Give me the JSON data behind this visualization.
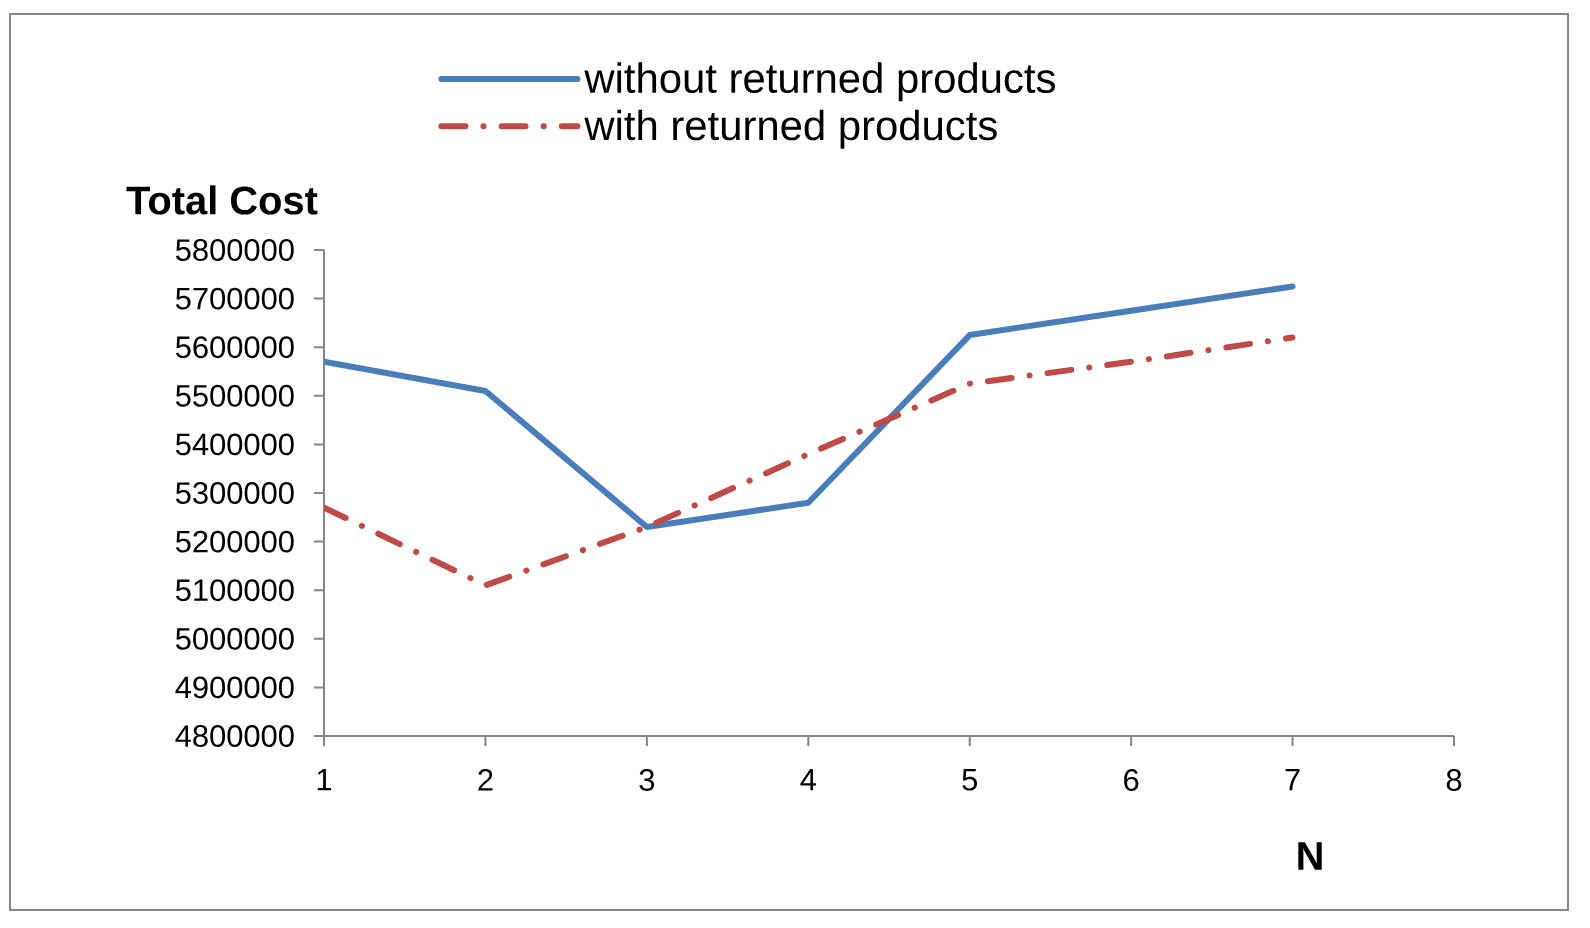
{
  "chart_data": {
    "type": "line",
    "xlabel": "N",
    "ylabel": "Total Cost",
    "legend": "top",
    "x": [
      1,
      2,
      3,
      4,
      5,
      6,
      7
    ],
    "series": [
      {
        "name": "without returned products",
        "color": "#4a7ebb",
        "line_style": "solid",
        "values": [
          5570000,
          5510000,
          5230000,
          5280000,
          5625000,
          5675000,
          5725000
        ]
      },
      {
        "name": "with returned products",
        "color": "#be4b48",
        "line_style": "dashdot",
        "values": [
          5270000,
          5110000,
          5230000,
          5380000,
          5525000,
          5570000,
          5620000
        ]
      }
    ],
    "xlim": [
      1,
      8
    ],
    "xticks": [
      1,
      2,
      3,
      4,
      5,
      6,
      7,
      8
    ],
    "ylim": [
      4800000,
      5800000
    ],
    "yticks": [
      4800000,
      4900000,
      5000000,
      5100000,
      5200000,
      5300000,
      5400000,
      5500000,
      5600000,
      5700000,
      5800000
    ]
  }
}
